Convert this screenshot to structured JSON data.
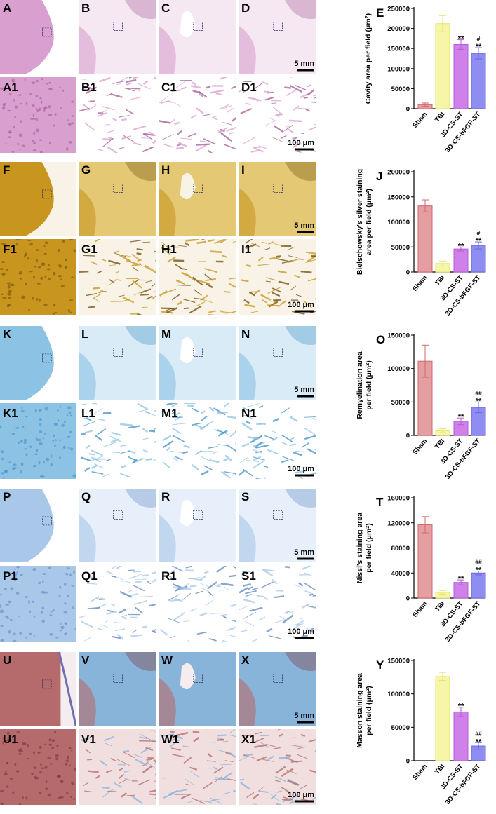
{
  "colors": {
    "sham": "#e59ea1",
    "tbi": "#f6f6a6",
    "cs": "#cf80ea",
    "bfgf": "#8f8df2",
    "sham_edge": "#d06a70",
    "tbi_edge": "#e3e36e",
    "cs_edge": "#b45fd2",
    "bfgf_edge": "#6c69d8",
    "he_tissue": "#d9a0cf",
    "silver_tissue": "#c8961f",
    "lfb_tissue": "#8cc2e4",
    "nissl_tissue": "#a9c7e9",
    "masson_red": "#b56a6c",
    "masson_blue": "#89b4d9"
  },
  "rows": [
    {
      "stain": "he",
      "overview_labels": [
        "A",
        "B",
        "C",
        "D"
      ],
      "zoom_labels": [
        "A1",
        "B1",
        "C1",
        "D1"
      ],
      "scale_overview": "5 mm",
      "scale_zoom": "100 μm"
    },
    {
      "stain": "silver",
      "overview_labels": [
        "F",
        "G",
        "H",
        "I"
      ],
      "zoom_labels": [
        "F1",
        "G1",
        "H1",
        "I1"
      ],
      "scale_overview": "5 mm",
      "scale_zoom": "100 μm"
    },
    {
      "stain": "lfb",
      "overview_labels": [
        "K",
        "L",
        "M",
        "N"
      ],
      "zoom_labels": [
        "K1",
        "L1",
        "M1",
        "N1"
      ],
      "scale_overview": "5 mm",
      "scale_zoom": "100 μm"
    },
    {
      "stain": "nissl",
      "overview_labels": [
        "P",
        "Q",
        "R",
        "S"
      ],
      "zoom_labels": [
        "P1",
        "Q1",
        "R1",
        "S1"
      ],
      "scale_overview": "5 mm",
      "scale_zoom": "100 μm"
    },
    {
      "stain": "masson",
      "overview_labels": [
        "U",
        "V",
        "W",
        "X"
      ],
      "zoom_labels": [
        "U1",
        "V1",
        "W1",
        "X1"
      ],
      "scale_overview": "5 mm",
      "scale_zoom": "100 μm"
    }
  ],
  "chart_data": [
    {
      "panel": "E",
      "type": "bar",
      "categories": [
        "Sham",
        "TBI",
        "3D-CS-ST",
        "3D-CS-bFGF-ST"
      ],
      "values": [
        10000,
        212000,
        160000,
        138000
      ],
      "errors": [
        4000,
        20000,
        12000,
        14000
      ],
      "marks": [
        "",
        "",
        "**",
        "#\n**"
      ],
      "ylabel_lines": [
        "Cavity area per field (μm",
        ")"
      ],
      "ylim": [
        0,
        250000
      ],
      "yticks": [
        "0",
        "50000",
        "100000",
        "150000",
        "200000",
        "250000"
      ]
    },
    {
      "panel": "J",
      "type": "bar",
      "categories": [
        "Sham",
        "TBI",
        "3D-CS-ST",
        "3D-CS-bFGF-ST"
      ],
      "values": [
        132000,
        17000,
        46000,
        53000
      ],
      "errors": [
        12000,
        5000,
        4000,
        7000
      ],
      "marks": [
        "",
        "",
        "**",
        "#\n**"
      ],
      "ylabel_lines": [
        "Bielschowsky's silver staining",
        "area per field (μm",
        ")"
      ],
      "ylim": [
        0,
        200000
      ],
      "yticks": [
        "0",
        "50000",
        "100000",
        "150000",
        "200000"
      ]
    },
    {
      "panel": "O",
      "type": "bar",
      "categories": [
        "Sham",
        "TBI",
        "3D-CS-ST",
        "3D-CS-bFGF-ST"
      ],
      "values": [
        111000,
        7000,
        21000,
        42000
      ],
      "errors": [
        24000,
        3000,
        5000,
        8000
      ],
      "marks": [
        "",
        "",
        "**",
        "##\n**"
      ],
      "ylabel_lines": [
        "Remyelination area",
        "per field (μm",
        ")"
      ],
      "ylim": [
        0,
        150000
      ],
      "yticks": [
        "0",
        "50000",
        "100000",
        "150000"
      ]
    },
    {
      "panel": "T",
      "type": "bar",
      "categories": [
        "Sham",
        "TBI",
        "3D-CS-ST",
        "3D-CS-bFGF-ST"
      ],
      "values": [
        117000,
        9000,
        25000,
        40000
      ],
      "errors": [
        13000,
        3000,
        4000,
        3000
      ],
      "marks": [
        "",
        "",
        "**",
        "##\n**"
      ],
      "ylabel_lines": [
        "Nissl's staining area",
        "per field (μm",
        ")"
      ],
      "ylim": [
        0,
        160000
      ],
      "yticks": [
        "0",
        "40000",
        "80000",
        "120000",
        "160000"
      ]
    },
    {
      "panel": "Y",
      "type": "bar",
      "categories": [
        "Sham",
        "TBI",
        "3D-CS-ST",
        "3D-CS-bFGF-ST"
      ],
      "values": [
        0,
        126000,
        73000,
        22000
      ],
      "errors": [
        0,
        6000,
        7000,
        5000
      ],
      "marks": [
        "",
        "",
        "**",
        "##\n**"
      ],
      "ylabel_lines": [
        "Masson staining area",
        "per field (μm",
        ")"
      ],
      "ylim": [
        0,
        150000
      ],
      "yticks": [
        "0",
        "50000",
        "100000",
        "150000"
      ]
    }
  ]
}
